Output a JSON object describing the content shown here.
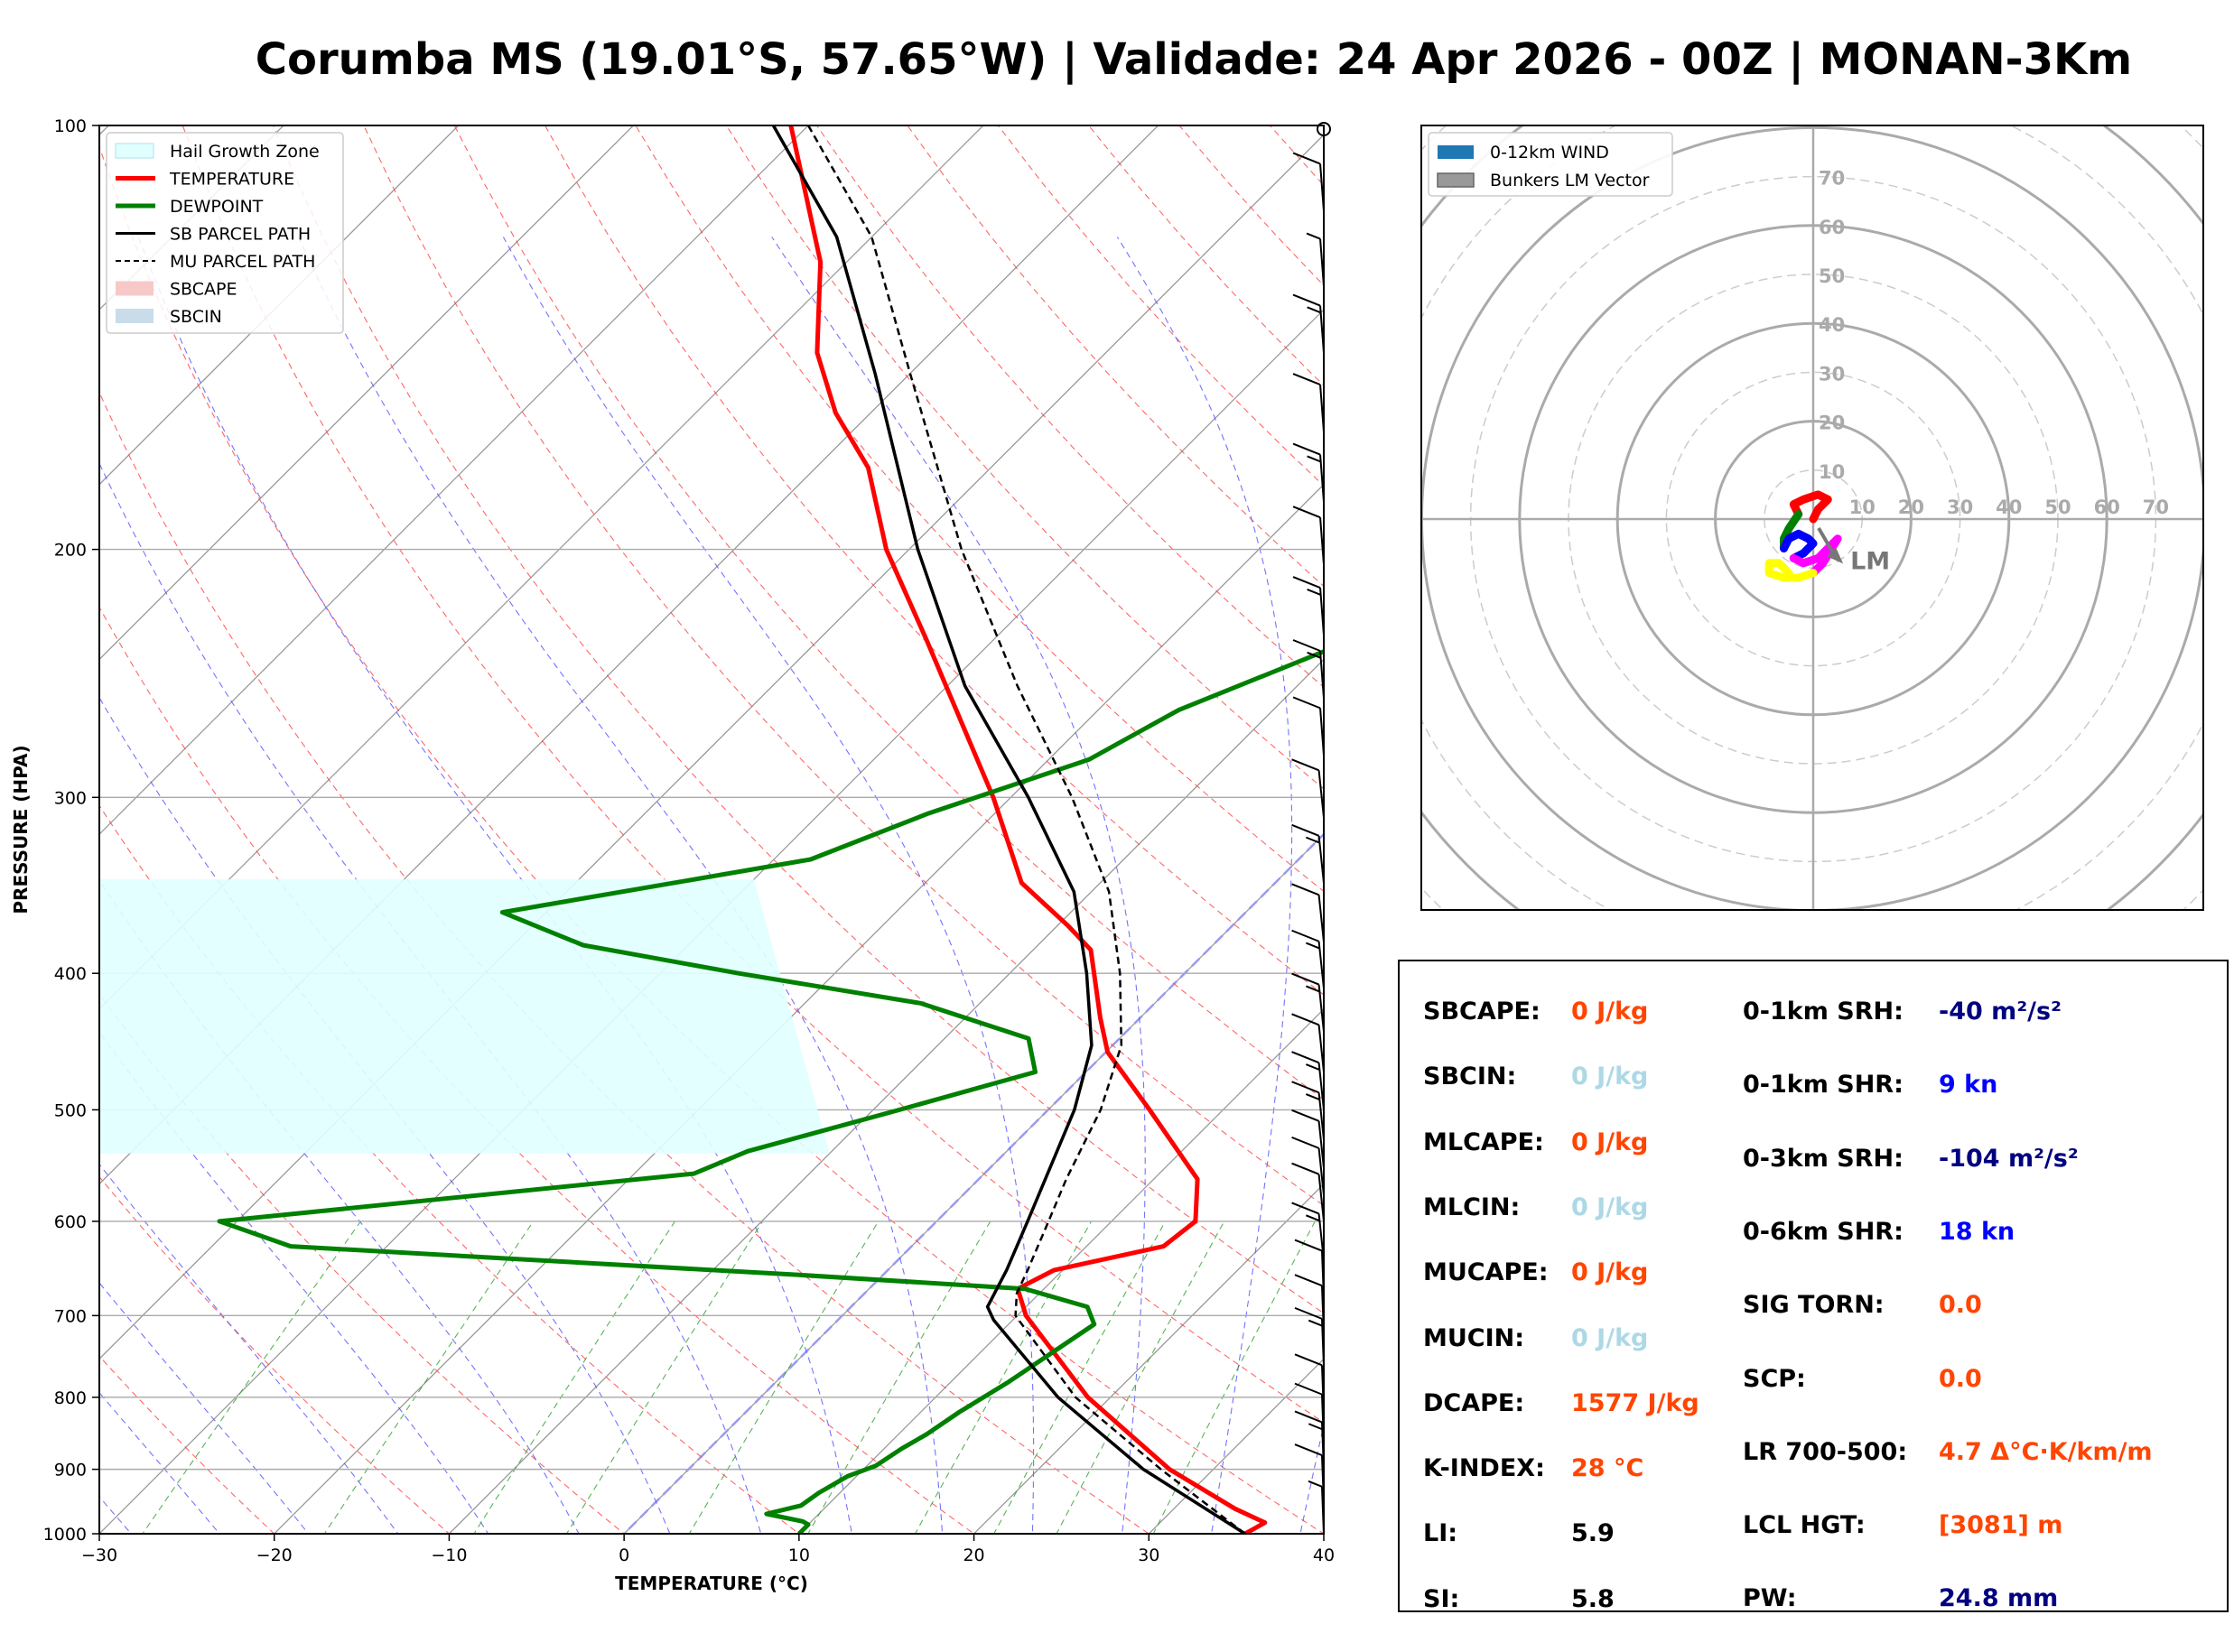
{
  "title": "Corumba MS (19.01°S, 57.65°W) | Validade: 24 Apr 2026 - 00Z | MONAN-3Km",
  "colors": {
    "temperature": "#ff0000",
    "dewpoint": "#008000",
    "parcel": "#000000",
    "hail": "#e0ffff",
    "dry_adiabat": "#ff0000",
    "moist_adiabat": "#0000ff",
    "mixing_ratio": "#008000",
    "isotherm": "#808080",
    "hodo_0_3": "#ff0000",
    "hodo_3_6": "#008000",
    "hodo_6_9": "#0000ff",
    "hodo_9_12": "#ff00ff",
    "hodo_12p": "#ffff00",
    "stat_orange": "#ff4500",
    "stat_light": "#add8e6",
    "stat_navy": "#000080",
    "stat_blue": "#0000ff"
  },
  "chart_data": [
    {
      "type": "line",
      "name": "skew-t",
      "xlabel": "TEMPERATURE (°C)",
      "ylabel": "PRESSURE (HPA)",
      "xlim": [
        -30,
        40
      ],
      "ylim": [
        1000,
        100
      ],
      "y_scale": "log",
      "skew_deg": 45,
      "xticks": [
        -30,
        -20,
        -10,
        0,
        10,
        20,
        30,
        40
      ],
      "xtick_labels": [
        "−30",
        "−20",
        "−10",
        "0",
        "10",
        "20",
        "30",
        "40"
      ],
      "yticks": [
        1000,
        900,
        800,
        700,
        600,
        500,
        400,
        300,
        200,
        100
      ],
      "legend_position": "top-left",
      "legend": [
        {
          "label": "Hail Growth Zone",
          "kind": "patch"
        },
        {
          "label": "TEMPERATURE",
          "kind": "line"
        },
        {
          "label": "DEWPOINT",
          "kind": "line"
        },
        {
          "label": "SB PARCEL PATH",
          "kind": "line"
        },
        {
          "label": "MU PARCEL PATH",
          "kind": "dash"
        },
        {
          "label": "SBCAPE",
          "kind": "patch"
        },
        {
          "label": "SBCIN",
          "kind": "patch"
        }
      ],
      "hail_zone": {
        "p_top": 343,
        "p_bottom": 537,
        "t_top": -30,
        "t_bottom": -10
      },
      "series": [
        {
          "name": "TEMPERATURE",
          "points": [
            [
              1000,
              35.5
            ],
            [
              982,
              36
            ],
            [
              960,
              33.5
            ],
            [
              900,
              27.5
            ],
            [
              800,
              18.7
            ],
            [
              700,
              10.5
            ],
            [
              670,
              8.5
            ],
            [
              650,
              9.5
            ],
            [
              625,
              14.4
            ],
            [
              600,
              14.8
            ],
            [
              560,
              12.5
            ],
            [
              500,
              5.8
            ],
            [
              455,
              0.1
            ],
            [
              430,
              -2.3
            ],
            [
              385,
              -6.7
            ],
            [
              370,
              -9.4
            ],
            [
              345,
              -14.5
            ],
            [
              300,
              -21
            ],
            [
              232,
              -33.8
            ],
            [
              200,
              -41.3
            ],
            [
              175,
              -47
            ],
            [
              160,
              -52
            ],
            [
              145,
              -56.5
            ],
            [
              125,
              -61.5
            ],
            [
              100,
              -71
            ]
          ]
        },
        {
          "name": "DEWPOINT",
          "points": [
            [
              1000,
              10
            ],
            [
              985,
              10
            ],
            [
              980,
              9.5
            ],
            [
              968,
              7
            ],
            [
              955,
              8.5
            ],
            [
              935,
              8.8
            ],
            [
              910,
              9.5
            ],
            [
              895,
              10.5
            ],
            [
              870,
              11
            ],
            [
              850,
              11.6
            ],
            [
              820,
              12.2
            ],
            [
              780,
              13.3
            ],
            [
              740,
              14.2
            ],
            [
              710,
              14.9
            ],
            [
              690,
              13.5
            ],
            [
              670,
              8.9
            ],
            [
              655,
              -4.8
            ],
            [
              625,
              -35.5
            ],
            [
              600,
              -41
            ],
            [
              555,
              -16.6
            ],
            [
              535,
              -14.8
            ],
            [
              500,
              -8.5
            ],
            [
              470,
              -2.9
            ],
            [
              445,
              -5.2
            ],
            [
              420,
              -13.4
            ],
            [
              400,
              -25.5
            ],
            [
              382,
              -36
            ],
            [
              362,
              -42.5
            ],
            [
              332,
              -27.9
            ],
            [
              308,
              -23.8
            ],
            [
              282,
              -17.7
            ],
            [
              260,
              -15.4
            ],
            [
              232,
              -9.5
            ],
            [
              175,
              -17
            ],
            [
              165,
              -17.5
            ],
            [
              140,
              -19.5
            ],
            [
              120,
              -22
            ],
            [
              100,
              -22.5
            ]
          ]
        },
        {
          "name": "SB PARCEL PATH",
          "points": [
            [
              1000,
              35.5
            ],
            [
              900,
              26
            ],
            [
              800,
              17
            ],
            [
              705,
              8.9
            ],
            [
              690,
              7.8
            ],
            [
              650,
              6.8
            ],
            [
              600,
              5.2
            ],
            [
              560,
              3.8
            ],
            [
              500,
              1.5
            ],
            [
              450,
              -1.2
            ],
            [
              400,
              -5.6
            ],
            [
              350,
              -11
            ],
            [
              300,
              -19
            ],
            [
              250,
              -29
            ],
            [
              200,
              -39.5
            ],
            [
              150,
              -52
            ],
            [
              120,
              -62
            ],
            [
              100,
              -72
            ]
          ]
        },
        {
          "name": "MU PARCEL PATH",
          "points": [
            [
              1000,
              35.5
            ],
            [
              900,
              27
            ],
            [
              800,
              18
            ],
            [
              700,
              9.9
            ],
            [
              675,
              8.7
            ],
            [
              650,
              8
            ],
            [
              600,
              6.4
            ],
            [
              560,
              5
            ],
            [
              500,
              3
            ],
            [
              450,
              0.5
            ],
            [
              400,
              -3.7
            ],
            [
              350,
              -9
            ],
            [
              300,
              -16.5
            ],
            [
              250,
              -26
            ],
            [
              200,
              -37
            ],
            [
              150,
              -50
            ],
            [
              120,
              -60
            ],
            [
              100,
              -70
            ]
          ]
        }
      ],
      "wind_barbs": [
        {
          "p": 100,
          "speed": 0
        },
        {
          "p": 115,
          "speed": 10
        },
        {
          "p": 130,
          "speed": 5
        },
        {
          "p": 145,
          "speed": 15
        },
        {
          "p": 165,
          "speed": 10
        },
        {
          "p": 185,
          "speed": 15
        },
        {
          "p": 205,
          "speed": 10
        },
        {
          "p": 230,
          "speed": 15
        },
        {
          "p": 255,
          "speed": 15
        },
        {
          "p": 280,
          "speed": 10
        },
        {
          "p": 310,
          "speed": 10
        },
        {
          "p": 345,
          "speed": 15
        },
        {
          "p": 380,
          "speed": 10
        },
        {
          "p": 410,
          "speed": 15
        },
        {
          "p": 440,
          "speed": 15
        },
        {
          "p": 470,
          "speed": 10
        },
        {
          "p": 500,
          "speed": 15
        },
        {
          "p": 525,
          "speed": 15
        },
        {
          "p": 550,
          "speed": 10
        },
        {
          "p": 575,
          "speed": 10
        },
        {
          "p": 600,
          "speed": 10
        },
        {
          "p": 640,
          "speed": 15
        },
        {
          "p": 680,
          "speed": 10
        },
        {
          "p": 720,
          "speed": 10
        },
        {
          "p": 760,
          "speed": 15
        },
        {
          "p": 820,
          "speed": 10
        },
        {
          "p": 860,
          "speed": 10
        },
        {
          "p": 900,
          "speed": 15
        },
        {
          "p": 950,
          "speed": 10
        },
        {
          "p": 1000,
          "speed": 5
        }
      ]
    },
    {
      "type": "scatter",
      "name": "hodograph",
      "xlim": [
        -80,
        80
      ],
      "ylim": [
        -80,
        80
      ],
      "ring_labels": [
        10,
        20,
        30,
        40,
        50,
        60,
        70
      ],
      "legend_position": "top-left",
      "legend": [
        {
          "label": "0-12km WIND"
        },
        {
          "label": "Bunkers LM Vector"
        }
      ],
      "lm_label": "LM",
      "bunkers_lm": [
        5,
        -8
      ],
      "segments": [
        {
          "layer": "0-3km",
          "points": [
            [
              0,
              0
            ],
            [
              1,
              2
            ],
            [
              3,
              4
            ],
            [
              1,
              5
            ],
            [
              -2,
              4
            ],
            [
              -4,
              3
            ],
            [
              -3,
              1
            ]
          ]
        },
        {
          "layer": "3-6km",
          "points": [
            [
              -3,
              1
            ],
            [
              -5,
              -2
            ],
            [
              -6,
              -4
            ],
            [
              -6,
              -6
            ]
          ]
        },
        {
          "layer": "6-9km",
          "points": [
            [
              -6,
              -6
            ],
            [
              -5,
              -4
            ],
            [
              -3,
              -3
            ],
            [
              -1,
              -4
            ],
            [
              0,
              -5
            ],
            [
              -2,
              -7
            ],
            [
              -4,
              -8
            ]
          ]
        },
        {
          "layer": "9-12km",
          "points": [
            [
              -4,
              -8
            ],
            [
              -2,
              -9
            ],
            [
              1,
              -8
            ],
            [
              2,
              -7
            ],
            [
              3,
              -6
            ],
            [
              4,
              -5
            ],
            [
              5,
              -4
            ],
            [
              2,
              -9
            ],
            [
              0,
              -11
            ]
          ]
        },
        {
          "layer": "12km+",
          "points": [
            [
              0,
              -11
            ],
            [
              -3,
              -12
            ],
            [
              -6,
              -12
            ],
            [
              -9,
              -11
            ],
            [
              -9,
              -9
            ],
            [
              -7,
              -9
            ],
            [
              -5,
              -11
            ]
          ]
        }
      ]
    }
  ],
  "stats": {
    "left": [
      {
        "label": "SBCAPE:",
        "value": "0 J/kg",
        "color": "#ff4500"
      },
      {
        "label": "SBCIN:",
        "value": "0 J/kg",
        "color": "#add8e6"
      },
      {
        "label": "MLCAPE:",
        "value": "0 J/kg",
        "color": "#ff4500"
      },
      {
        "label": "MLCIN:",
        "value": "0 J/kg",
        "color": "#add8e6"
      },
      {
        "label": "MUCAPE:",
        "value": "0 J/kg",
        "color": "#ff4500"
      },
      {
        "label": "MUCIN:",
        "value": "0 J/kg",
        "color": "#add8e6"
      },
      {
        "label": "DCAPE:",
        "value": "1577 J/kg",
        "color": "#ff4500"
      },
      {
        "label": "K-INDEX:",
        "value": "28 °C",
        "color": "#ff4500"
      },
      {
        "label": "LI:",
        "value": "5.9",
        "color": "#000000"
      },
      {
        "label": "SI:",
        "value": "5.8",
        "color": "#000000"
      }
    ],
    "right": [
      {
        "label": "0-1km SRH:",
        "value": "-40 m²/s²",
        "color": "#000080"
      },
      {
        "label": "0-1km SHR:",
        "value": "9 kn",
        "color": "#0000ff"
      },
      {
        "label": "0-3km SRH:",
        "value": "-104 m²/s²",
        "color": "#000080"
      },
      {
        "label": "0-6km SHR:",
        "value": "18 kn",
        "color": "#0000ff"
      },
      {
        "label": "SIG TORN:",
        "value": "0.0",
        "color": "#ff4500"
      },
      {
        "label": "SCP:",
        "value": "0.0",
        "color": "#ff4500"
      },
      {
        "label": "LR 700-500:",
        "value": "4.7 Δ°C·K/km/m",
        "color": "#ff4500"
      },
      {
        "label": "LCL HGT:",
        "value": "[3081] m",
        "color": "#ff4500"
      },
      {
        "label": "PW:",
        "value": "24.8 mm",
        "color": "#000080"
      }
    ]
  }
}
